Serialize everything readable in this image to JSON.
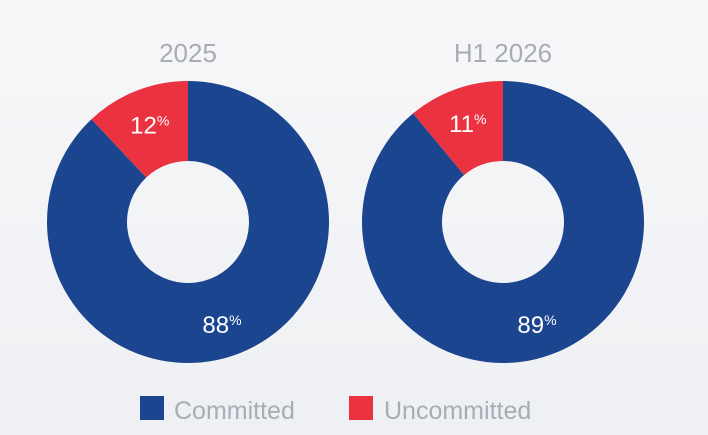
{
  "chart_data": [
    {
      "type": "pie",
      "title": "2025",
      "categories": [
        "Committed",
        "Uncommitted"
      ],
      "values": [
        88,
        12
      ],
      "unit": "%"
    },
    {
      "type": "pie",
      "title": "H1 2026",
      "categories": [
        "Committed",
        "Uncommitted"
      ],
      "values": [
        89,
        11
      ],
      "unit": "%"
    }
  ],
  "legend": {
    "items": [
      {
        "label": "Committed",
        "color": "#1c458f"
      },
      {
        "label": "Uncommitted",
        "color": "#ea3240"
      }
    ]
  }
}
